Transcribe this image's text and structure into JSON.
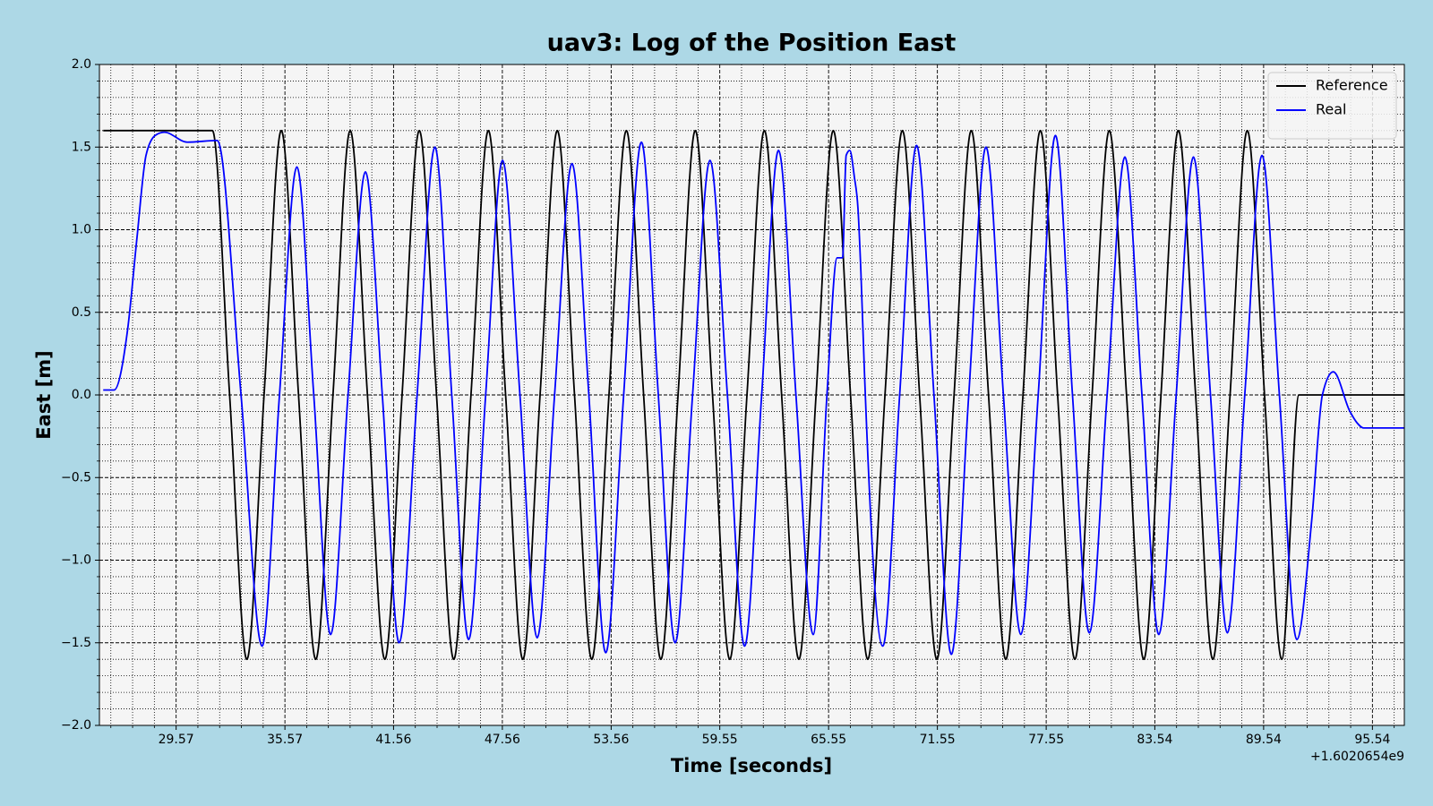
{
  "chart_data": {
    "type": "line",
    "title": "uav3: Log of the Position East",
    "x_label": "Time [seconds]",
    "y_label": "East [m]",
    "x_offset_label": "+1.6020654e9",
    "xlim": [
      25.34,
      97.3
    ],
    "ylim": [
      -2,
      2
    ],
    "xticks": [
      29.57,
      35.57,
      41.56,
      47.56,
      53.56,
      59.55,
      65.55,
      71.55,
      77.55,
      83.54,
      89.54,
      95.54
    ],
    "yticks": [
      {
        "value": -2,
        "label": "−2.0"
      },
      {
        "value": -1.5,
        "label": "−1.5"
      },
      {
        "value": -1,
        "label": "−1.0"
      },
      {
        "value": -0.5,
        "label": "−0.5"
      },
      {
        "value": 0,
        "label": "0.0"
      },
      0.5,
      {
        "value": 1,
        "label": "1.0"
      },
      1.5,
      {
        "value": 2,
        "label": "2.0"
      }
    ],
    "grid": true,
    "minor_grid": true,
    "legend": "upper right",
    "series": [
      {
        "name": "Reference",
        "color": "#000000",
        "x": [
          25.55,
          31.57,
          32.52,
          33.47,
          34.42,
          35.37,
          36.32,
          37.27,
          38.22,
          39.17,
          40.12,
          41.08,
          42.03,
          42.98,
          43.93,
          44.88,
          45.83,
          46.79,
          47.74,
          48.69,
          49.64,
          50.59,
          51.54,
          52.49,
          53.44,
          54.4,
          55.35,
          56.3,
          57.25,
          58.2,
          59.15,
          60.1,
          61.05,
          62.01,
          62.96,
          63.91,
          64.86,
          65.81,
          66.76,
          67.71,
          68.66,
          69.62,
          70.57,
          71.52,
          72.47,
          73.42,
          74.37,
          75.32,
          76.27,
          77.23,
          78.18,
          79.13,
          80.08,
          81.03,
          81.98,
          82.93,
          83.88,
          84.84,
          85.79,
          86.74,
          87.69,
          88.64,
          89.59,
          90.54,
          91.49,
          97.3
        ],
        "values": [
          1.6,
          1.6,
          0,
          -1.6,
          0,
          1.6,
          0,
          -1.6,
          0,
          1.6,
          0,
          -1.6,
          0,
          1.6,
          0,
          -1.6,
          0,
          1.6,
          0,
          -1.6,
          0,
          1.6,
          0,
          -1.6,
          0,
          1.6,
          0,
          -1.6,
          0,
          1.6,
          0,
          -1.6,
          0,
          1.6,
          0,
          -1.6,
          0,
          1.6,
          0,
          -1.6,
          0,
          1.6,
          0,
          -1.6,
          0,
          1.6,
          0,
          -1.6,
          0,
          1.6,
          0,
          -1.6,
          0,
          1.6,
          0,
          -1.6,
          0,
          1.6,
          0,
          -1.6,
          0,
          1.6,
          0,
          -1.6,
          0,
          0
        ]
      },
      {
        "name": "Real",
        "color": "#0000ff",
        "x": [
          25.55,
          26.15,
          26.9,
          27.41,
          27.91,
          28.41,
          28.92,
          30.18,
          31.84,
          33.15,
          34.31,
          35.27,
          36.23,
          37.16,
          38.09,
          39.05,
          40.01,
          40.94,
          41.87,
          42.86,
          43.84,
          44.77,
          45.7,
          46.64,
          47.57,
          48.53,
          49.48,
          50.44,
          51.4,
          52.33,
          53.26,
          54.25,
          55.23,
          56.16,
          57.09,
          58.05,
          59.01,
          59.97,
          60.92,
          61.86,
          62.79,
          63.75,
          64.7,
          65.46,
          66.02,
          66.32,
          66.52,
          66.72,
          66.97,
          67.17,
          67.33,
          67.53,
          68.54,
          69.47,
          70.4,
          71.36,
          72.32,
          73.28,
          74.23,
          75.19,
          76.15,
          77.11,
          78.06,
          79.0,
          79.93,
          80.91,
          81.89,
          82.83,
          83.76,
          84.72,
          85.67,
          86.61,
          87.54,
          88.5,
          89.45,
          90.41,
          91.37,
          92.2,
          92.78,
          93.38,
          94.3,
          94.7,
          95.05,
          97.3
        ],
        "values": [
          0.03,
          0.03,
          0.4,
          0.95,
          1.45,
          1.57,
          1.59,
          1.53,
          1.54,
          0,
          -1.52,
          0,
          1.38,
          0,
          -1.45,
          0,
          1.35,
          0,
          -1.5,
          0,
          1.5,
          0,
          -1.48,
          0,
          1.42,
          0,
          -1.47,
          0,
          1.4,
          0,
          -1.56,
          0,
          1.53,
          0,
          -1.5,
          0,
          1.42,
          0,
          -1.52,
          0,
          1.48,
          0,
          -1.45,
          0,
          0.83,
          0.83,
          1.45,
          1.48,
          1.32,
          1.13,
          0.75,
          0.13,
          -1.52,
          0,
          1.51,
          0,
          -1.57,
          0,
          1.5,
          0,
          -1.45,
          0,
          1.57,
          0,
          -1.44,
          0,
          1.44,
          0,
          -1.45,
          0,
          1.44,
          0,
          -1.44,
          0,
          1.45,
          0,
          -1.48,
          -0.75,
          0,
          0.14,
          -0.1,
          -0.17,
          -0.2,
          -0.2
        ]
      }
    ]
  }
}
